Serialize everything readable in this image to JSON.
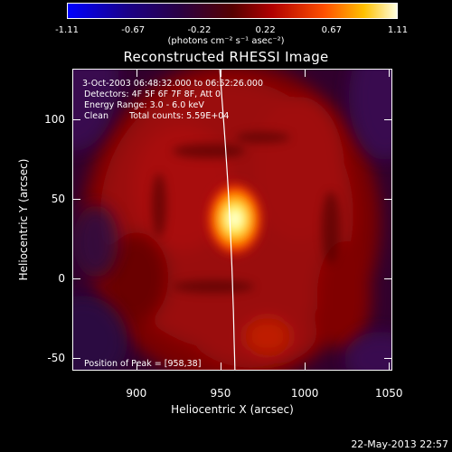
{
  "chart_data": {
    "type": "heatmap",
    "title": "Reconstructed RHESSI Image",
    "xlabel": "Heliocentric X (arcsec)",
    "ylabel": "Heliocentric Y (arcsec)",
    "xlim": [
      862,
      1052
    ],
    "ylim": [
      -58,
      132
    ],
    "x_ticks": [
      900,
      950,
      1000,
      1050
    ],
    "y_ticks": [
      -50,
      0,
      50,
      100
    ],
    "colorbar": {
      "range": [
        -1.11,
        1.11
      ],
      "tick_labels": [
        "-1.11",
        "-0.67",
        "-0.22",
        "0.22",
        "0.67",
        "1.11"
      ],
      "unit_label": "(photons cm⁻² s⁻¹ asec⁻²)"
    },
    "annotations": {
      "time_range": "3-Oct-2003 06:48:32.000 to 06:52:26.000",
      "detectors": "Detectors: 4F 5F 6F 7F 8F, Att 0",
      "energy_range": "Energy Range: 3.0 - 6.0 keV",
      "clean_label": "Clean",
      "total_counts": "Total counts: 5.59E+04",
      "peak_position": "Position of Peak = [958,38]"
    },
    "peak": {
      "x": 958,
      "y": 38,
      "value": 1.11
    }
  },
  "footer": {
    "timestamp": "22-May-2013 22:57"
  }
}
